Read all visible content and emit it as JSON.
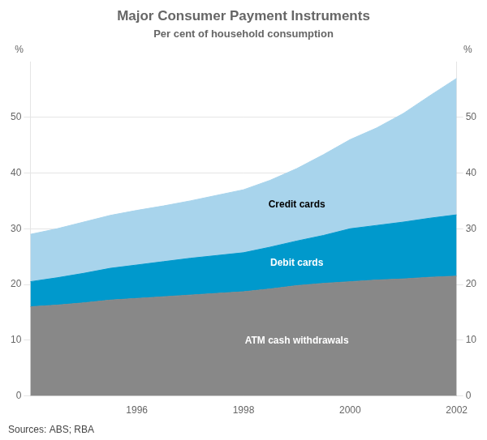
{
  "chart_data": {
    "type": "area",
    "title": "Major Consumer Payment Instruments",
    "subtitle": "Per cent of household consumption",
    "source": "Sources: ABS; RBA",
    "y_label": "%",
    "y2_label": "%",
    "stacked": true,
    "x": [
      1994.0,
      1994.5,
      1995.0,
      1995.5,
      1996.0,
      1996.5,
      1997.0,
      1997.5,
      1998.0,
      1998.5,
      1999.0,
      1999.5,
      2000.0,
      2000.5,
      2001.0,
      2001.5,
      2002.0
    ],
    "series": [
      {
        "name": "ATM cash withdrawals",
        "color": "#888888",
        "values": [
          16.0,
          16.3,
          16.7,
          17.2,
          17.5,
          17.8,
          18.1,
          18.4,
          18.7,
          19.2,
          19.8,
          20.2,
          20.5,
          20.8,
          21.0,
          21.3,
          21.5
        ]
      },
      {
        "name": "Debit cards",
        "color": "#0099cc",
        "values": [
          4.5,
          4.9,
          5.3,
          5.7,
          6.0,
          6.3,
          6.6,
          6.8,
          7.0,
          7.5,
          8.0,
          8.6,
          9.5,
          9.8,
          10.2,
          10.6,
          11.0
        ]
      },
      {
        "name": "Credit cards",
        "color": "#a8d4ec",
        "values": [
          8.5,
          8.8,
          9.2,
          9.5,
          9.8,
          10.0,
          10.3,
          10.8,
          11.3,
          12.0,
          13.0,
          14.5,
          16.0,
          17.5,
          19.5,
          22.0,
          24.5
        ]
      }
    ],
    "xlim": [
      1994,
      2002
    ],
    "xticks": [
      1996,
      1998,
      2000,
      2002
    ],
    "ylim": [
      0,
      60
    ],
    "yticks": [
      0,
      10,
      20,
      30,
      40,
      50
    ],
    "y2lim": [
      0,
      60
    ],
    "y2ticks": [
      0,
      10,
      20,
      30,
      40,
      50
    ],
    "grid": "y"
  }
}
